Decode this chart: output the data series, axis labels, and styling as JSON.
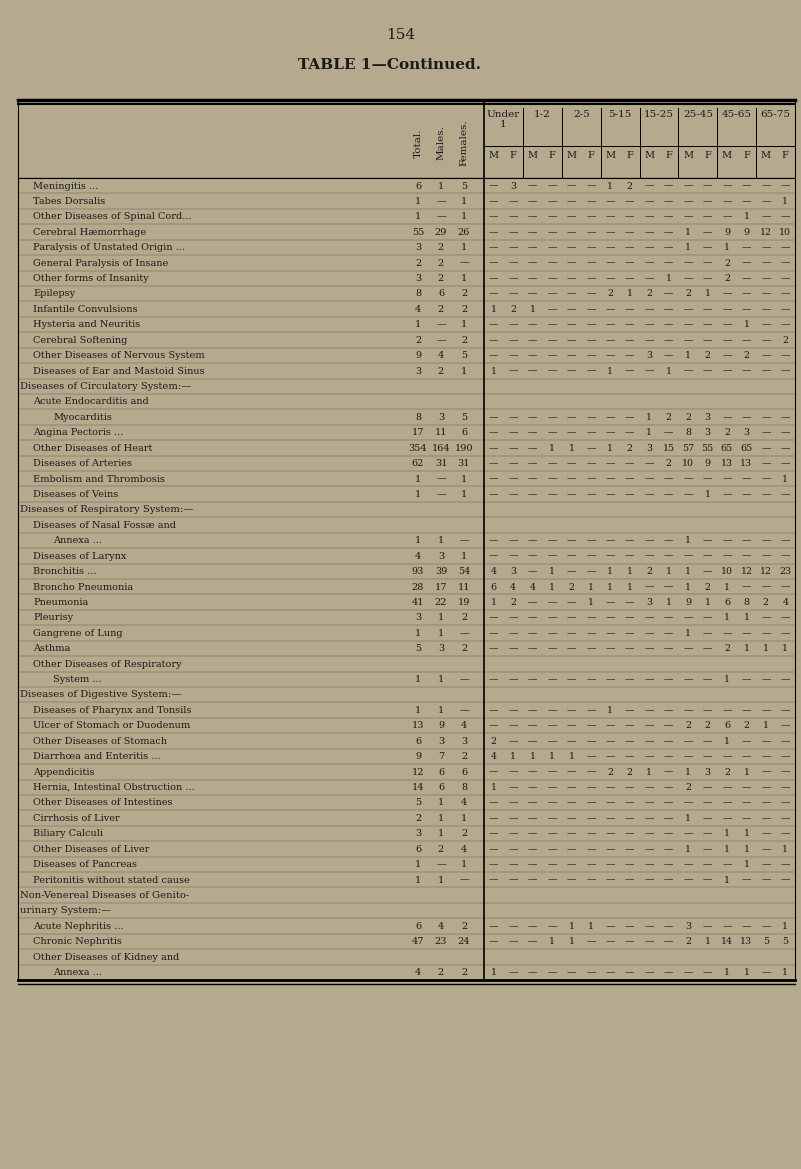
{
  "page_number": "154",
  "title": "TABLE 1—Continued.",
  "bg_color": "#b5aa8e",
  "text_color": "#1a1a1a",
  "rows": [
    {
      "label": "Meningitis ...",
      "indent": 1,
      "total": "6",
      "males": "1",
      "females": "5",
      "data": [
        "—",
        "3",
        "—",
        "—",
        "—",
        "—",
        "1",
        "2",
        "—",
        "—",
        "—",
        "—",
        "—",
        "—",
        "—",
        "—"
      ]
    },
    {
      "label": "Tabes Dorsalis",
      "indent": 1,
      "total": "1",
      "males": "—",
      "females": "1",
      "data": [
        "—",
        "—",
        "—",
        "—",
        "—",
        "—",
        "—",
        "—",
        "—",
        "—",
        "—",
        "—",
        "—",
        "—",
        "—",
        "1"
      ]
    },
    {
      "label": "Other Diseases of Spinal Cord...",
      "indent": 1,
      "total": "1",
      "males": "—",
      "females": "1",
      "data": [
        "—",
        "—",
        "—",
        "—",
        "—",
        "—",
        "—",
        "—",
        "—",
        "—",
        "—",
        "—",
        "—",
        "1",
        "—",
        "—"
      ]
    },
    {
      "label": "Cerebral Hæmorrhage",
      "indent": 1,
      "total": "55",
      "males": "29",
      "females": "26",
      "data": [
        "—",
        "—",
        "—",
        "—",
        "—",
        "—",
        "—",
        "—",
        "—",
        "—",
        "1",
        "—",
        "9",
        "9",
        "12",
        "10"
      ]
    },
    {
      "label": "Paralysis of Unstated Origin ...",
      "indent": 1,
      "total": "3",
      "males": "2",
      "females": "1",
      "data": [
        "—",
        "—",
        "—",
        "—",
        "—",
        "—",
        "—",
        "—",
        "—",
        "—",
        "1",
        "—",
        "1",
        "—",
        "—",
        "—"
      ]
    },
    {
      "label": "General Paralysis of Insane",
      "indent": 1,
      "total": "2",
      "males": "2",
      "females": "—",
      "data": [
        "—",
        "—",
        "—",
        "—",
        "—",
        "—",
        "—",
        "—",
        "—",
        "—",
        "—",
        "—",
        "2",
        "—",
        "—",
        "—"
      ]
    },
    {
      "label": "Other forms of Insanity",
      "indent": 1,
      "total": "3",
      "males": "2",
      "females": "1",
      "data": [
        "—",
        "—",
        "—",
        "—",
        "—",
        "—",
        "—",
        "—",
        "—",
        "1",
        "—",
        "—",
        "2",
        "—",
        "—",
        "—"
      ]
    },
    {
      "label": "Epilepsy",
      "indent": 1,
      "total": "8",
      "males": "6",
      "females": "2",
      "data": [
        "—",
        "—",
        "—",
        "—",
        "—",
        "—",
        "2",
        "1",
        "2",
        "—",
        "2",
        "1",
        "—",
        "—",
        "—",
        "—"
      ]
    },
    {
      "label": "Infantile Convulsions",
      "indent": 1,
      "total": "4",
      "males": "2",
      "females": "2",
      "data": [
        "1",
        "2",
        "1",
        "—",
        "—",
        "—",
        "—",
        "—",
        "—",
        "—",
        "—",
        "—",
        "—",
        "—",
        "—",
        "—"
      ]
    },
    {
      "label": "Hysteria and Neuritis",
      "indent": 1,
      "total": "1",
      "males": "—",
      "females": "1",
      "data": [
        "—",
        "—",
        "—",
        "—",
        "—",
        "—",
        "—",
        "—",
        "—",
        "—",
        "—",
        "—",
        "—",
        "1",
        "—",
        "—"
      ]
    },
    {
      "label": "Cerebral Softening",
      "indent": 1,
      "total": "2",
      "males": "—",
      "females": "2",
      "data": [
        "—",
        "—",
        "—",
        "—",
        "—",
        "—",
        "—",
        "—",
        "—",
        "—",
        "—",
        "—",
        "—",
        "—",
        "—",
        "2"
      ]
    },
    {
      "label": "Other Diseases of Nervous System",
      "indent": 1,
      "total": "9",
      "males": "4",
      "females": "5",
      "data": [
        "—",
        "—",
        "—",
        "—",
        "—",
        "—",
        "—",
        "—",
        "3",
        "—",
        "1",
        "2",
        "—",
        "2",
        "—",
        "—"
      ]
    },
    {
      "label": "Diseases of Ear and Mastoid Sinus",
      "indent": 1,
      "total": "3",
      "males": "2",
      "females": "1",
      "data": [
        "1",
        "—",
        "—",
        "—",
        "—",
        "—",
        "1",
        "—",
        "—",
        "1",
        "—",
        "—",
        "—",
        "—",
        "—",
        "—"
      ]
    },
    {
      "label": "Diseases of Circulatory System:—",
      "indent": 0,
      "total": "",
      "males": "",
      "females": "",
      "data": [
        "",
        "",
        "",
        "",
        "",
        "",
        "",
        "",
        "",
        "",
        "",
        "",
        "",
        "",
        "",
        ""
      ]
    },
    {
      "label": "Acute Endocarditis and",
      "indent": 1,
      "total": "",
      "males": "",
      "females": "",
      "data": [
        "",
        "",
        "",
        "",
        "",
        "",
        "",
        "",
        "",
        "",
        "",
        "",
        "",
        "",
        "",
        ""
      ]
    },
    {
      "label": "Myocarditis",
      "indent": 2,
      "total": "8",
      "males": "3",
      "females": "5",
      "data": [
        "—",
        "—",
        "—",
        "—",
        "—",
        "—",
        "—",
        "—",
        "1",
        "2",
        "2",
        "3",
        "—",
        "—",
        "—",
        "—"
      ]
    },
    {
      "label": "Angina Pectoris ...",
      "indent": 1,
      "total": "17",
      "males": "11",
      "females": "6",
      "data": [
        "—",
        "—",
        "—",
        "—",
        "—",
        "—",
        "—",
        "—",
        "1",
        "—",
        "8",
        "3",
        "2",
        "3",
        "—",
        "—"
      ]
    },
    {
      "label": "Other Diseases of Heart",
      "indent": 1,
      "total": "354",
      "males": "164",
      "females": "190",
      "data": [
        "—",
        "—",
        "—",
        "1",
        "1",
        "—",
        "1",
        "2",
        "3",
        "15",
        "57",
        "55",
        "65",
        "65",
        "—",
        "—"
      ]
    },
    {
      "label": "Diseases of Arteries",
      "indent": 1,
      "total": "62",
      "males": "31",
      "females": "31",
      "data": [
        "—",
        "—",
        "—",
        "—",
        "—",
        "—",
        "—",
        "—",
        "—",
        "2",
        "10",
        "9",
        "13",
        "13",
        "—",
        "—"
      ]
    },
    {
      "label": "Embolism and Thrombosis",
      "indent": 1,
      "total": "1",
      "males": "—",
      "females": "1",
      "data": [
        "—",
        "—",
        "—",
        "—",
        "—",
        "—",
        "—",
        "—",
        "—",
        "—",
        "—",
        "—",
        "—",
        "—",
        "—",
        "1"
      ]
    },
    {
      "label": "Diseases of Veins",
      "indent": 1,
      "total": "1",
      "males": "—",
      "females": "1",
      "data": [
        "—",
        "—",
        "—",
        "—",
        "—",
        "—",
        "—",
        "—",
        "—",
        "—",
        "—",
        "1",
        "—",
        "—",
        "—",
        "—"
      ]
    },
    {
      "label": "Diseases of Respiratory System:—",
      "indent": 0,
      "total": "",
      "males": "",
      "females": "",
      "data": [
        "",
        "",
        "",
        "",
        "",
        "",
        "",
        "",
        "",
        "",
        "",
        "",
        "",
        "",
        "",
        ""
      ]
    },
    {
      "label": "Diseases of Nasal Fossæ and",
      "indent": 1,
      "total": "",
      "males": "",
      "females": "",
      "data": [
        "",
        "",
        "",
        "",
        "",
        "",
        "",
        "",
        "",
        "",
        "",
        "",
        "",
        "",
        "",
        ""
      ]
    },
    {
      "label": "Annexa ...",
      "indent": 2,
      "total": "1",
      "males": "1",
      "females": "—",
      "data": [
        "—",
        "—",
        "—",
        "—",
        "—",
        "—",
        "—",
        "—",
        "—",
        "—",
        "1",
        "—",
        "—",
        "—",
        "—",
        "—"
      ]
    },
    {
      "label": "Diseases of Larynx",
      "indent": 1,
      "total": "4",
      "males": "3",
      "females": "1",
      "data": [
        "—",
        "—",
        "—",
        "—",
        "—",
        "—",
        "—",
        "—",
        "—",
        "—",
        "—",
        "—",
        "—",
        "—",
        "—",
        "—"
      ]
    },
    {
      "label": "Bronchitis ...",
      "indent": 1,
      "total": "93",
      "males": "39",
      "females": "54",
      "data": [
        "4",
        "3",
        "—",
        "1",
        "—",
        "—",
        "1",
        "1",
        "2",
        "1",
        "1",
        "—",
        "10",
        "12",
        "12",
        "23"
      ]
    },
    {
      "label": "Broncho Pneumonia",
      "indent": 1,
      "total": "28",
      "males": "17",
      "females": "11",
      "data": [
        "6",
        "4",
        "4",
        "1",
        "2",
        "1",
        "1",
        "1",
        "—",
        "—",
        "1",
        "2",
        "1",
        "—",
        "—",
        "—"
      ]
    },
    {
      "label": "Pneumonia",
      "indent": 1,
      "total": "41",
      "males": "22",
      "females": "19",
      "data": [
        "1",
        "2",
        "—",
        "—",
        "—",
        "1",
        "—",
        "—",
        "3",
        "1",
        "9",
        "1",
        "6",
        "8",
        "2",
        "4"
      ]
    },
    {
      "label": "Pleurisy",
      "indent": 1,
      "total": "3",
      "males": "1",
      "females": "2",
      "data": [
        "—",
        "—",
        "—",
        "—",
        "—",
        "—",
        "—",
        "—",
        "—",
        "—",
        "—",
        "—",
        "1",
        "1",
        "—",
        "—"
      ]
    },
    {
      "label": "Gangrene of Lung",
      "indent": 1,
      "total": "1",
      "males": "1",
      "females": "—",
      "data": [
        "—",
        "—",
        "—",
        "—",
        "—",
        "—",
        "—",
        "—",
        "—",
        "—",
        "1",
        "—",
        "—",
        "—",
        "—",
        "—"
      ]
    },
    {
      "label": "Asthma",
      "indent": 1,
      "total": "5",
      "males": "3",
      "females": "2",
      "data": [
        "—",
        "—",
        "—",
        "—",
        "—",
        "—",
        "—",
        "—",
        "—",
        "—",
        "—",
        "—",
        "2",
        "1",
        "1",
        "1"
      ]
    },
    {
      "label": "Other Diseases of Respiratory",
      "indent": 1,
      "total": "",
      "males": "",
      "females": "",
      "data": [
        "",
        "",
        "",
        "",
        "",
        "",
        "",
        "",
        "",
        "",
        "",
        "",
        "",
        "",
        "",
        ""
      ]
    },
    {
      "label": "System ...",
      "indent": 2,
      "total": "1",
      "males": "1",
      "females": "—",
      "data": [
        "—",
        "—",
        "—",
        "—",
        "—",
        "—",
        "—",
        "—",
        "—",
        "—",
        "—",
        "—",
        "1",
        "—",
        "—",
        "—"
      ]
    },
    {
      "label": "Diseases of Digestive System:—",
      "indent": 0,
      "total": "",
      "males": "",
      "females": "",
      "data": [
        "",
        "",
        "",
        "",
        "",
        "",
        "",
        "",
        "",
        "",
        "",
        "",
        "",
        "",
        "",
        ""
      ]
    },
    {
      "label": "Diseases of Pharynx and Tonsils",
      "indent": 1,
      "total": "1",
      "males": "1",
      "females": "—",
      "data": [
        "—",
        "—",
        "—",
        "—",
        "—",
        "—",
        "1",
        "—",
        "—",
        "—",
        "—",
        "—",
        "—",
        "—",
        "—",
        "—"
      ]
    },
    {
      "label": "Ulcer of Stomach or Duodenum",
      "indent": 1,
      "total": "13",
      "males": "9",
      "females": "4",
      "data": [
        "—",
        "—",
        "—",
        "—",
        "—",
        "—",
        "—",
        "—",
        "—",
        "—",
        "2",
        "2",
        "6",
        "2",
        "1",
        "—"
      ]
    },
    {
      "label": "Other Diseases of Stomach",
      "indent": 1,
      "total": "6",
      "males": "3",
      "females": "3",
      "data": [
        "2",
        "—",
        "—",
        "—",
        "—",
        "—",
        "—",
        "—",
        "—",
        "—",
        "—",
        "—",
        "1",
        "—",
        "—",
        "—"
      ]
    },
    {
      "label": "Diarrhœa and Enteritis ...",
      "indent": 1,
      "total": "9",
      "males": "7",
      "females": "2",
      "data": [
        "4",
        "1",
        "1",
        "1",
        "1",
        "—",
        "—",
        "—",
        "—",
        "—",
        "—",
        "—",
        "—",
        "—",
        "—",
        "—"
      ]
    },
    {
      "label": "Appendicitis",
      "indent": 1,
      "total": "12",
      "males": "6",
      "females": "6",
      "data": [
        "—",
        "—",
        "—",
        "—",
        "—",
        "—",
        "2",
        "2",
        "1",
        "—",
        "1",
        "3",
        "2",
        "1",
        "—",
        "—"
      ]
    },
    {
      "label": "Hernia, Intestinal Obstruction ...",
      "indent": 1,
      "total": "14",
      "males": "6",
      "females": "8",
      "data": [
        "1",
        "—",
        "—",
        "—",
        "—",
        "—",
        "—",
        "—",
        "—",
        "—",
        "2",
        "—",
        "—",
        "—",
        "—",
        "—"
      ]
    },
    {
      "label": "Other Diseases of Intestines",
      "indent": 1,
      "total": "5",
      "males": "1",
      "females": "4",
      "data": [
        "—",
        "—",
        "—",
        "—",
        "—",
        "—",
        "—",
        "—",
        "—",
        "—",
        "—",
        "—",
        "—",
        "—",
        "—",
        "—"
      ]
    },
    {
      "label": "Cirrhosis of Liver",
      "indent": 1,
      "total": "2",
      "males": "1",
      "females": "1",
      "data": [
        "—",
        "—",
        "—",
        "—",
        "—",
        "—",
        "—",
        "—",
        "—",
        "—",
        "1",
        "—",
        "—",
        "—",
        "—",
        "—"
      ]
    },
    {
      "label": "Biliary Calculi",
      "indent": 1,
      "total": "3",
      "males": "1",
      "females": "2",
      "data": [
        "—",
        "—",
        "—",
        "—",
        "—",
        "—",
        "—",
        "—",
        "—",
        "—",
        "—",
        "—",
        "1",
        "1",
        "—",
        "—"
      ]
    },
    {
      "label": "Other Diseases of Liver",
      "indent": 1,
      "total": "6",
      "males": "2",
      "females": "4",
      "data": [
        "—",
        "—",
        "—",
        "—",
        "—",
        "—",
        "—",
        "—",
        "—",
        "—",
        "1",
        "—",
        "1",
        "1",
        "—",
        "1"
      ]
    },
    {
      "label": "Diseases of Pancreas",
      "indent": 1,
      "total": "1",
      "males": "—",
      "females": "1",
      "data": [
        "—",
        "—",
        "—",
        "—",
        "—",
        "—",
        "—",
        "—",
        "—",
        "—",
        "—",
        "—",
        "—",
        "1",
        "—",
        "—"
      ]
    },
    {
      "label": "Peritonitis without stated cause",
      "indent": 1,
      "total": "1",
      "males": "1",
      "females": "—",
      "data": [
        "—",
        "—",
        "—",
        "—",
        "—",
        "—",
        "—",
        "—",
        "—",
        "—",
        "—",
        "—",
        "1",
        "—",
        "—",
        "—"
      ]
    },
    {
      "label": "Non-Venereal Diseases of Genito-",
      "indent": 0,
      "total": "",
      "males": "",
      "females": "",
      "data": [
        "",
        "",
        "",
        "",
        "",
        "",
        "",
        "",
        "",
        "",
        "",
        "",
        "",
        "",
        "",
        ""
      ]
    },
    {
      "label": "urinary System:—",
      "indent": 0,
      "total": "",
      "males": "",
      "females": "",
      "data": [
        "",
        "",
        "",
        "",
        "",
        "",
        "",
        "",
        "",
        "",
        "",
        "",
        "",
        "",
        "",
        ""
      ]
    },
    {
      "label": "Acute Nephritis ...",
      "indent": 1,
      "total": "6",
      "males": "4",
      "females": "2",
      "data": [
        "—",
        "—",
        "—",
        "—",
        "1",
        "1",
        "—",
        "—",
        "—",
        "—",
        "3",
        "—",
        "—",
        "—",
        "—",
        "1"
      ]
    },
    {
      "label": "Chronic Nephritis",
      "indent": 1,
      "total": "47",
      "males": "23",
      "females": "24",
      "data": [
        "—",
        "—",
        "—",
        "1",
        "1",
        "—",
        "—",
        "—",
        "—",
        "—",
        "2",
        "1",
        "14",
        "13",
        "5",
        "5"
      ]
    },
    {
      "label": "Other Diseases of Kidney and",
      "indent": 1,
      "total": "",
      "males": "",
      "females": "",
      "data": [
        "",
        "",
        "",
        "",
        "",
        "",
        "",
        "",
        "",
        "",
        "",
        "",
        "",
        "",
        "",
        ""
      ]
    },
    {
      "label": "Annexa ...",
      "indent": 2,
      "total": "4",
      "males": "2",
      "females": "2",
      "data": [
        "1",
        "—",
        "—",
        "—",
        "—",
        "—",
        "—",
        "—",
        "—",
        "—",
        "—",
        "—",
        "1",
        "1",
        "—",
        "1"
      ]
    }
  ]
}
